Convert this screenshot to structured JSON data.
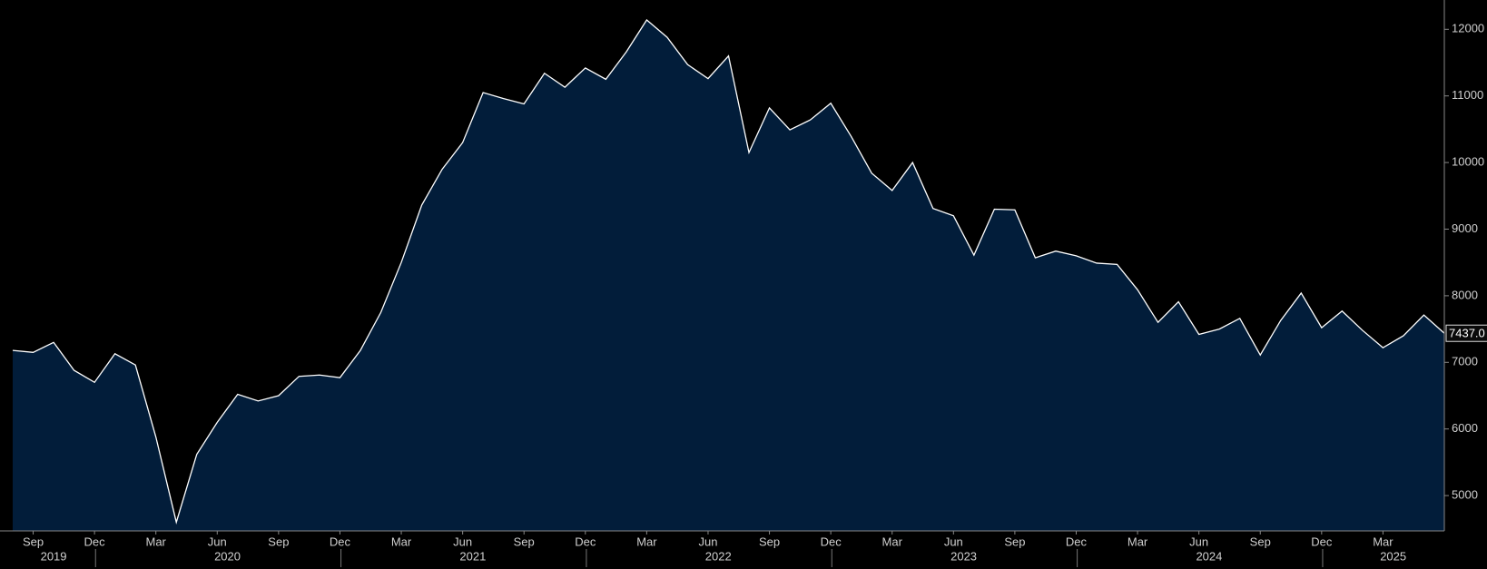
{
  "chart_data": {
    "type": "area",
    "x": [
      "2019-08",
      "2019-09",
      "2019-10",
      "2019-11",
      "2019-12",
      "2020-01",
      "2020-02",
      "2020-03",
      "2020-04",
      "2020-05",
      "2020-06",
      "2020-07",
      "2020-08",
      "2020-09",
      "2020-10",
      "2020-11",
      "2020-12",
      "2021-01",
      "2021-02",
      "2021-03",
      "2021-04",
      "2021-05",
      "2021-06",
      "2021-07",
      "2021-08",
      "2021-09",
      "2021-10",
      "2021-11",
      "2021-12",
      "2022-01",
      "2022-02",
      "2022-03",
      "2022-04",
      "2022-05",
      "2022-06",
      "2022-07",
      "2022-08",
      "2022-09",
      "2022-10",
      "2022-11",
      "2022-12",
      "2023-01",
      "2023-02",
      "2023-03",
      "2023-04",
      "2023-05",
      "2023-06",
      "2023-07",
      "2023-08",
      "2023-09",
      "2023-10",
      "2023-11",
      "2023-12",
      "2024-01",
      "2024-02",
      "2024-03",
      "2024-04",
      "2024-05",
      "2024-06",
      "2024-07",
      "2024-08",
      "2024-09",
      "2024-10",
      "2024-11",
      "2024-12",
      "2025-01",
      "2025-02",
      "2025-03",
      "2025-04",
      "2025-05",
      "2025-06"
    ],
    "values": [
      7180,
      7150,
      7300,
      6880,
      6700,
      7130,
      6960,
      5880,
      4600,
      5620,
      6100,
      6520,
      6420,
      6500,
      6790,
      6810,
      6770,
      7180,
      7750,
      8500,
      9360,
      9900,
      10300,
      11050,
      10960,
      10880,
      11340,
      11130,
      11420,
      11250,
      11660,
      12140,
      11880,
      11470,
      11260,
      11600,
      10150,
      10820,
      10490,
      10640,
      10890,
      10390,
      9840,
      9580,
      10000,
      9310,
      9200,
      8610,
      9300,
      9290,
      8570,
      8670,
      8600,
      8490,
      8470,
      8090,
      7600,
      7910,
      7420,
      7500,
      7660,
      7110,
      7630,
      8040,
      7520,
      7770,
      7480,
      7220,
      7400,
      7710,
      7437
    ],
    "value_labels": [
      null,
      null,
      null,
      null,
      null,
      null,
      null,
      null,
      null,
      null,
      null,
      null,
      null,
      null,
      null,
      null,
      null,
      null,
      null,
      null,
      null,
      null,
      null,
      null,
      null,
      null,
      null,
      null,
      null,
      null,
      null,
      null,
      null,
      null,
      null,
      null,
      null,
      null,
      null,
      null,
      null,
      null,
      null,
      null,
      null,
      null,
      null,
      null,
      null,
      null,
      null,
      null,
      null,
      null,
      null,
      null,
      null,
      null,
      null,
      null,
      null,
      null,
      null,
      null,
      null,
      null,
      null,
      null,
      null,
      null,
      "7437.0"
    ],
    "color": "#021d3a",
    "line_color": "#ffffff",
    "xlim": [
      "2019-08",
      "2025-06"
    ],
    "xticks": [
      {
        "value": "2019-09",
        "label": "Sep"
      },
      {
        "value": "2019-12",
        "label": "Dec"
      },
      {
        "value": "2020-03",
        "label": "Mar"
      },
      {
        "value": "2020-06",
        "label": "Jun"
      },
      {
        "value": "2020-09",
        "label": "Sep"
      },
      {
        "value": "2020-12",
        "label": "Dec"
      },
      {
        "value": "2021-03",
        "label": "Mar"
      },
      {
        "value": "2021-06",
        "label": "Jun"
      },
      {
        "value": "2021-09",
        "label": "Sep"
      },
      {
        "value": "2021-12",
        "label": "Dec"
      },
      {
        "value": "2022-03",
        "label": "Mar"
      },
      {
        "value": "2022-06",
        "label": "Jun"
      },
      {
        "value": "2022-09",
        "label": "Sep"
      },
      {
        "value": "2022-12",
        "label": "Dec"
      },
      {
        "value": "2023-03",
        "label": "Mar"
      },
      {
        "value": "2023-06",
        "label": "Jun"
      },
      {
        "value": "2023-09",
        "label": "Sep"
      },
      {
        "value": "2023-12",
        "label": "Dec"
      },
      {
        "value": "2024-03",
        "label": "Mar"
      },
      {
        "value": "2024-06",
        "label": "Jun"
      },
      {
        "value": "2024-09",
        "label": "Sep"
      },
      {
        "value": "2024-12",
        "label": "Dec"
      },
      {
        "value": "2025-03",
        "label": "Mar"
      }
    ],
    "years": [
      "2019",
      "2020",
      "2021",
      "2022",
      "2023",
      "2024",
      "2025"
    ],
    "ylim": [
      4470,
      12440
    ],
    "yticks": [
      5000,
      6000,
      7000,
      8000,
      9000,
      10000,
      11000,
      12000
    ]
  }
}
